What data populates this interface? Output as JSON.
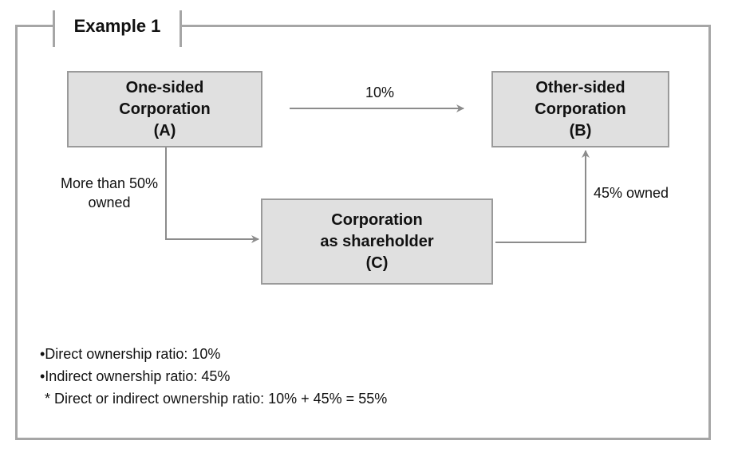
{
  "title": "Example 1",
  "boxes": {
    "a": [
      "One-sided",
      "Corporation",
      "(A)"
    ],
    "b": [
      "Other-sided",
      "Corporation",
      "(B)"
    ],
    "c": [
      "Corporation",
      "as shareholder",
      "(C)"
    ]
  },
  "edges": {
    "a_to_b": "10%",
    "a_to_c": [
      "More than 50%",
      "owned"
    ],
    "c_to_b": "45% owned"
  },
  "notes": {
    "direct": "•Direct ownership ratio: 10%",
    "indirect": "•Indirect ownership ratio: 45%",
    "total": "* Direct or indirect ownership ratio: 10% + 45% = 55%"
  },
  "colors": {
    "box_fill": "#e0e0e0",
    "box_border": "#9a9a9a",
    "frame": "#a6a6a6",
    "arrow": "#8c8c8c"
  }
}
